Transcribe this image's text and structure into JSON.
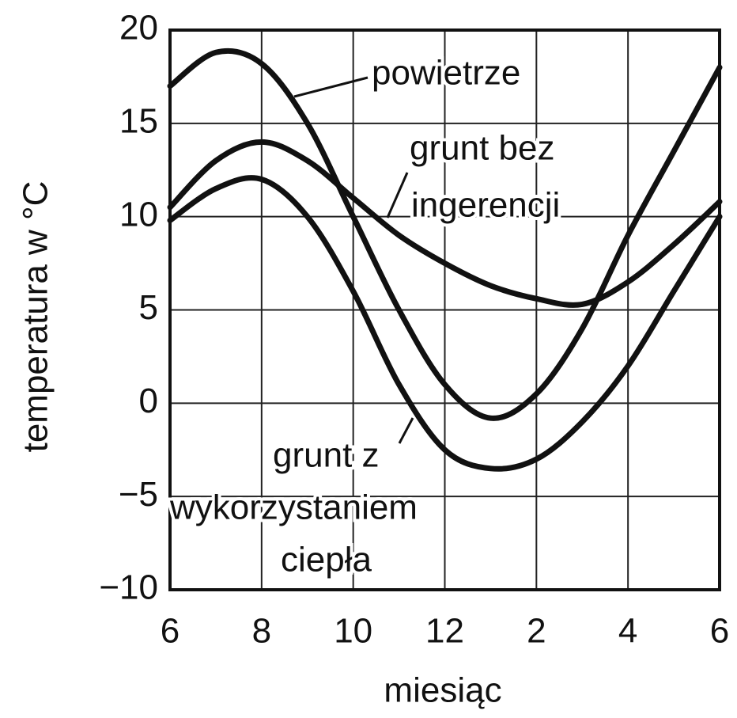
{
  "chart_data": {
    "type": "line",
    "ylabel": "temperatura w °C",
    "xlabel": "miesiąc",
    "x": [
      0,
      1,
      2,
      3,
      4,
      5,
      6,
      7,
      8,
      9,
      10,
      11,
      12
    ],
    "xlim": [
      0,
      12
    ],
    "xticks": [
      {
        "value": 0,
        "label": "6"
      },
      {
        "value": 2,
        "label": "8"
      },
      {
        "value": 4,
        "label": "10"
      },
      {
        "value": 6,
        "label": "12"
      },
      {
        "value": 8,
        "label": "2"
      },
      {
        "value": 10,
        "label": "4"
      },
      {
        "value": 12,
        "label": "6"
      }
    ],
    "ylim": [
      -10,
      20
    ],
    "yticks": [
      20,
      15,
      10,
      5,
      0,
      {
        "value": -5,
        "label": "−5"
      },
      {
        "value": -10,
        "label": "−10"
      }
    ],
    "grid": true,
    "series": [
      {
        "name": [
          "powietrze"
        ],
        "color": "#111111",
        "values": [
          17,
          18.8,
          18.2,
          15,
          10,
          5,
          1,
          -0.8,
          0.5,
          4,
          9,
          13.5,
          18
        ]
      },
      {
        "name": [
          "grunt bez",
          "ingerencji"
        ],
        "color": "#111111",
        "values": [
          10.5,
          13,
          14,
          13,
          11,
          9,
          7.5,
          6.3,
          5.6,
          5.3,
          6.5,
          8.5,
          10.8
        ]
      },
      {
        "name": [
          "grunt z",
          "wykorzystaniem",
          "ciepła"
        ],
        "color": "#111111",
        "values": [
          9.8,
          11.5,
          12,
          10,
          6,
          1,
          -2.5,
          -3.5,
          -3,
          -1,
          2,
          6,
          10
        ]
      }
    ]
  }
}
